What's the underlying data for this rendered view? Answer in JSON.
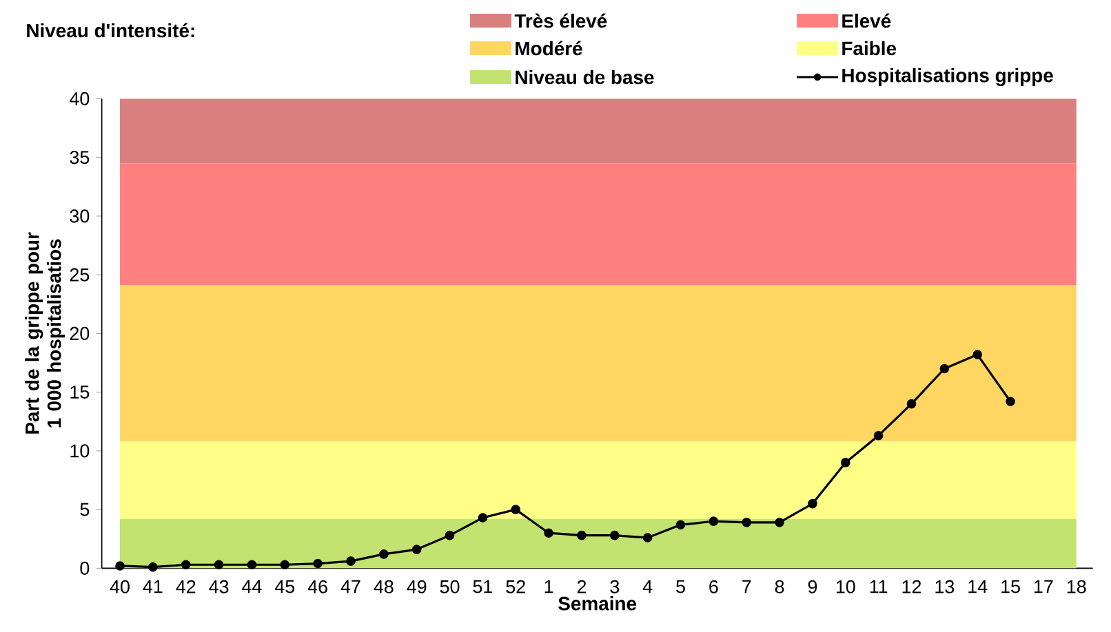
{
  "chart_data": {
    "type": "line",
    "legend_title": "Niveau d'intensité:",
    "xlabel": "Semaine",
    "ylabel": "Part de la grippe pour 1 000 hospitalisatios",
    "categories": [
      "40",
      "41",
      "42",
      "43",
      "44",
      "45",
      "46",
      "47",
      "48",
      "49",
      "50",
      "51",
      "52",
      "1",
      "2",
      "3",
      "4",
      "5",
      "6",
      "7",
      "8",
      "9",
      "10",
      "11",
      "12",
      "13",
      "14",
      "15",
      "17",
      "18"
    ],
    "series": [
      {
        "name": "Hospitalisations grippe",
        "color": "#000000",
        "values": [
          0.2,
          0.1,
          0.3,
          0.3,
          0.3,
          0.3,
          0.4,
          0.6,
          1.2,
          1.6,
          2.8,
          4.3,
          5.0,
          3.0,
          2.8,
          2.8,
          2.6,
          3.7,
          4.0,
          3.9,
          3.9,
          5.5,
          9.0,
          11.3,
          14.0,
          17.0,
          18.2,
          14.2,
          null,
          null
        ]
      }
    ],
    "bands": [
      {
        "axis": "y",
        "from": 34.5,
        "to": 40,
        "label": "Très élevé",
        "color": "#d97f7f"
      },
      {
        "axis": "y",
        "from": 24.1,
        "to": 34.5,
        "label": "Elevé",
        "color": "#ff8080"
      },
      {
        "axis": "y",
        "from": 10.8,
        "to": 24.1,
        "label": "Modéré",
        "color": "#ffd662"
      },
      {
        "axis": "y",
        "from": 4.2,
        "to": 10.8,
        "label": "Faible",
        "color": "#ffff88"
      },
      {
        "axis": "y",
        "from": 0,
        "to": 4.2,
        "label": "Niveau de base",
        "color": "#c2e36f"
      }
    ],
    "ylim": [
      0,
      40
    ],
    "yticks": [
      0,
      5,
      10,
      15,
      20,
      25,
      30,
      35,
      40
    ],
    "grid": false,
    "legend": "top",
    "marker": "circle",
    "line_style": "solid"
  }
}
